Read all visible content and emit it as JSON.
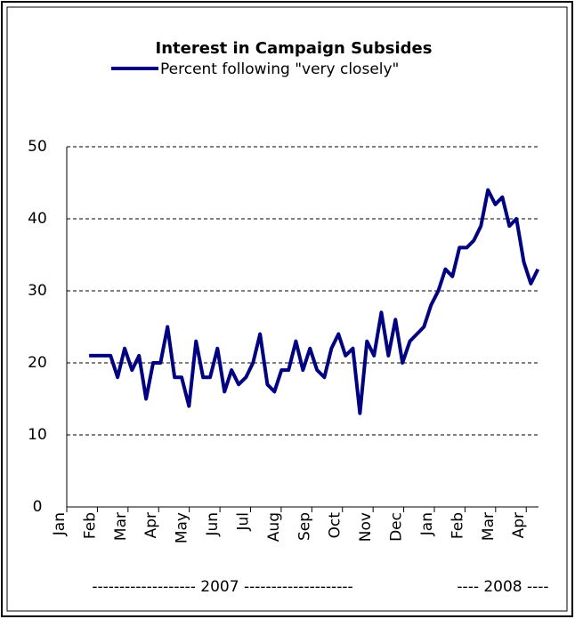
{
  "chart_data": {
    "type": "line",
    "title": "Interest in Campaign Subsides",
    "x": [
      0.73,
      0.96,
      1.2,
      1.43,
      1.66,
      1.89,
      2.13,
      2.36,
      2.59,
      2.82,
      3.06,
      3.29,
      3.52,
      3.75,
      3.99,
      4.22,
      4.45,
      4.68,
      4.92,
      5.15,
      5.38,
      5.61,
      5.85,
      6.08,
      6.31,
      6.55,
      6.78,
      7.01,
      7.24,
      7.48,
      7.71,
      7.94,
      8.17,
      8.41,
      8.64,
      8.87,
      9.1,
      9.34,
      9.57,
      9.8,
      10.03,
      10.27,
      10.5,
      10.73,
      10.96,
      11.2,
      11.43,
      11.66,
      11.89,
      12.13,
      12.36,
      12.59,
      12.82,
      13.06,
      13.29,
      13.52,
      13.75,
      13.99,
      14.22,
      14.45,
      14.68,
      14.92,
      15.15,
      15.38
    ],
    "series": [
      {
        "name": "Percent following \"very closely\"",
        "color": "#000080",
        "values": [
          21,
          21,
          21,
          21,
          18,
          22,
          19,
          21,
          15,
          20,
          20,
          25,
          18,
          18,
          14,
          23,
          18,
          18,
          22,
          16,
          19,
          17,
          18,
          20,
          24,
          17,
          16,
          19,
          19,
          23,
          19,
          22,
          19,
          18,
          22,
          24,
          21,
          22,
          13,
          23,
          21,
          27,
          21,
          26,
          20,
          23,
          24,
          25,
          28,
          30,
          33,
          32,
          36,
          36,
          37,
          39,
          44,
          42,
          43,
          39,
          40,
          34,
          31,
          33
        ]
      }
    ],
    "xlim": [
      0,
      15.4
    ],
    "xticks": [
      {
        "value": 0,
        "label": "Jan"
      },
      {
        "value": 1,
        "label": "Feb"
      },
      {
        "value": 2,
        "label": "Mar"
      },
      {
        "value": 3,
        "label": "Apr"
      },
      {
        "value": 4,
        "label": "May"
      },
      {
        "value": 5,
        "label": "Jun"
      },
      {
        "value": 6,
        "label": "Jul"
      },
      {
        "value": 7,
        "label": "Aug"
      },
      {
        "value": 8,
        "label": "Sep"
      },
      {
        "value": 9,
        "label": "Oct"
      },
      {
        "value": 10,
        "label": "Nov"
      },
      {
        "value": 11,
        "label": "Dec"
      },
      {
        "value": 12,
        "label": "Jan"
      },
      {
        "value": 13,
        "label": "Feb"
      },
      {
        "value": 14,
        "label": "Mar"
      },
      {
        "value": 15,
        "label": "Apr"
      }
    ],
    "x_groups": [
      "------------------- 2007 --------------------",
      "---- 2008 ----"
    ],
    "ylim": [
      0,
      50
    ],
    "yticks": [
      0,
      10,
      20,
      30,
      40,
      50
    ],
    "grid": true
  }
}
